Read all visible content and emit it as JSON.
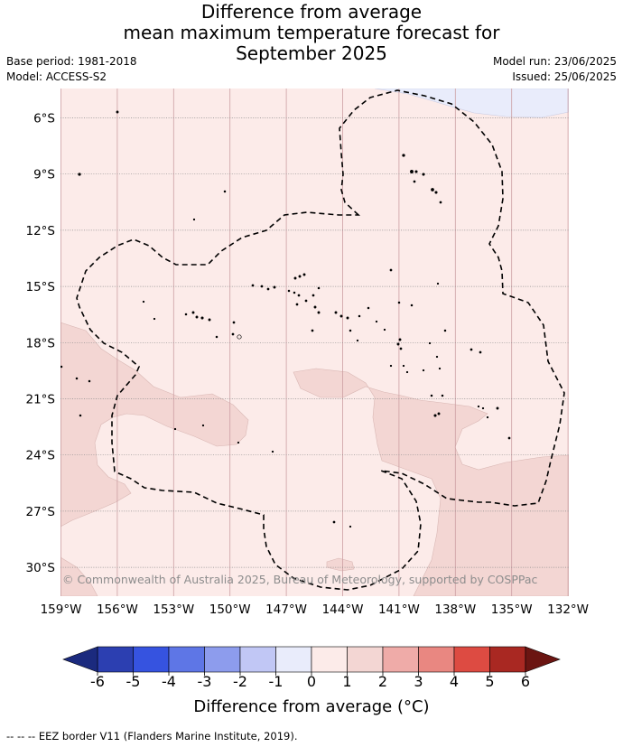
{
  "title": {
    "line1": "Difference from average",
    "line2": "mean maximum temperature forecast for",
    "line3": "September 2025"
  },
  "meta": {
    "base_period": "Base period: 1981-2018",
    "model": "Model: ACCESS-S2",
    "model_run": "Model run: 23/06/2025",
    "issued": "Issued: 25/06/2025"
  },
  "map": {
    "lon_labels": [
      "159°W",
      "156°W",
      "153°W",
      "150°W",
      "147°W",
      "144°W",
      "141°W",
      "138°W",
      "135°W",
      "132°W"
    ],
    "lat_labels": [
      "6°S",
      "9°S",
      "12°S",
      "15°S",
      "18°S",
      "21°S",
      "24°S",
      "27°S",
      "30°S"
    ],
    "copyright": "© Commonwealth of Australia 2025, Bureau of Meteorology, supported by COSPPac",
    "background_anomaly_class": "0 to 1",
    "colors": {
      "class_0_1": "#fcebe9",
      "class_1_2": "#f3d6d3",
      "class_m1_0": "#e9ecfb",
      "grid": "#cc9fa3",
      "eez": "#000000"
    }
  },
  "colorbar": {
    "tick_labels": [
      "-6",
      "-5",
      "-4",
      "-3",
      "-2",
      "-1",
      "0",
      "1",
      "2",
      "3",
      "4",
      "5",
      "6"
    ],
    "colors": [
      "#2c3fb1",
      "#3653e0",
      "#5e76e6",
      "#8d9ced",
      "#c1c7f5",
      "#e9ecfb",
      "#fcebe9",
      "#f3d6d3",
      "#efaba8",
      "#e98781",
      "#dd4b42",
      "#a92822"
    ],
    "under_color": "#1b2a7e",
    "over_color": "#6b1512",
    "title": "Difference from average (°C)"
  },
  "footnote": "--  --  -- EEZ border V11 (Flanders Marine Institute, 2019)."
}
